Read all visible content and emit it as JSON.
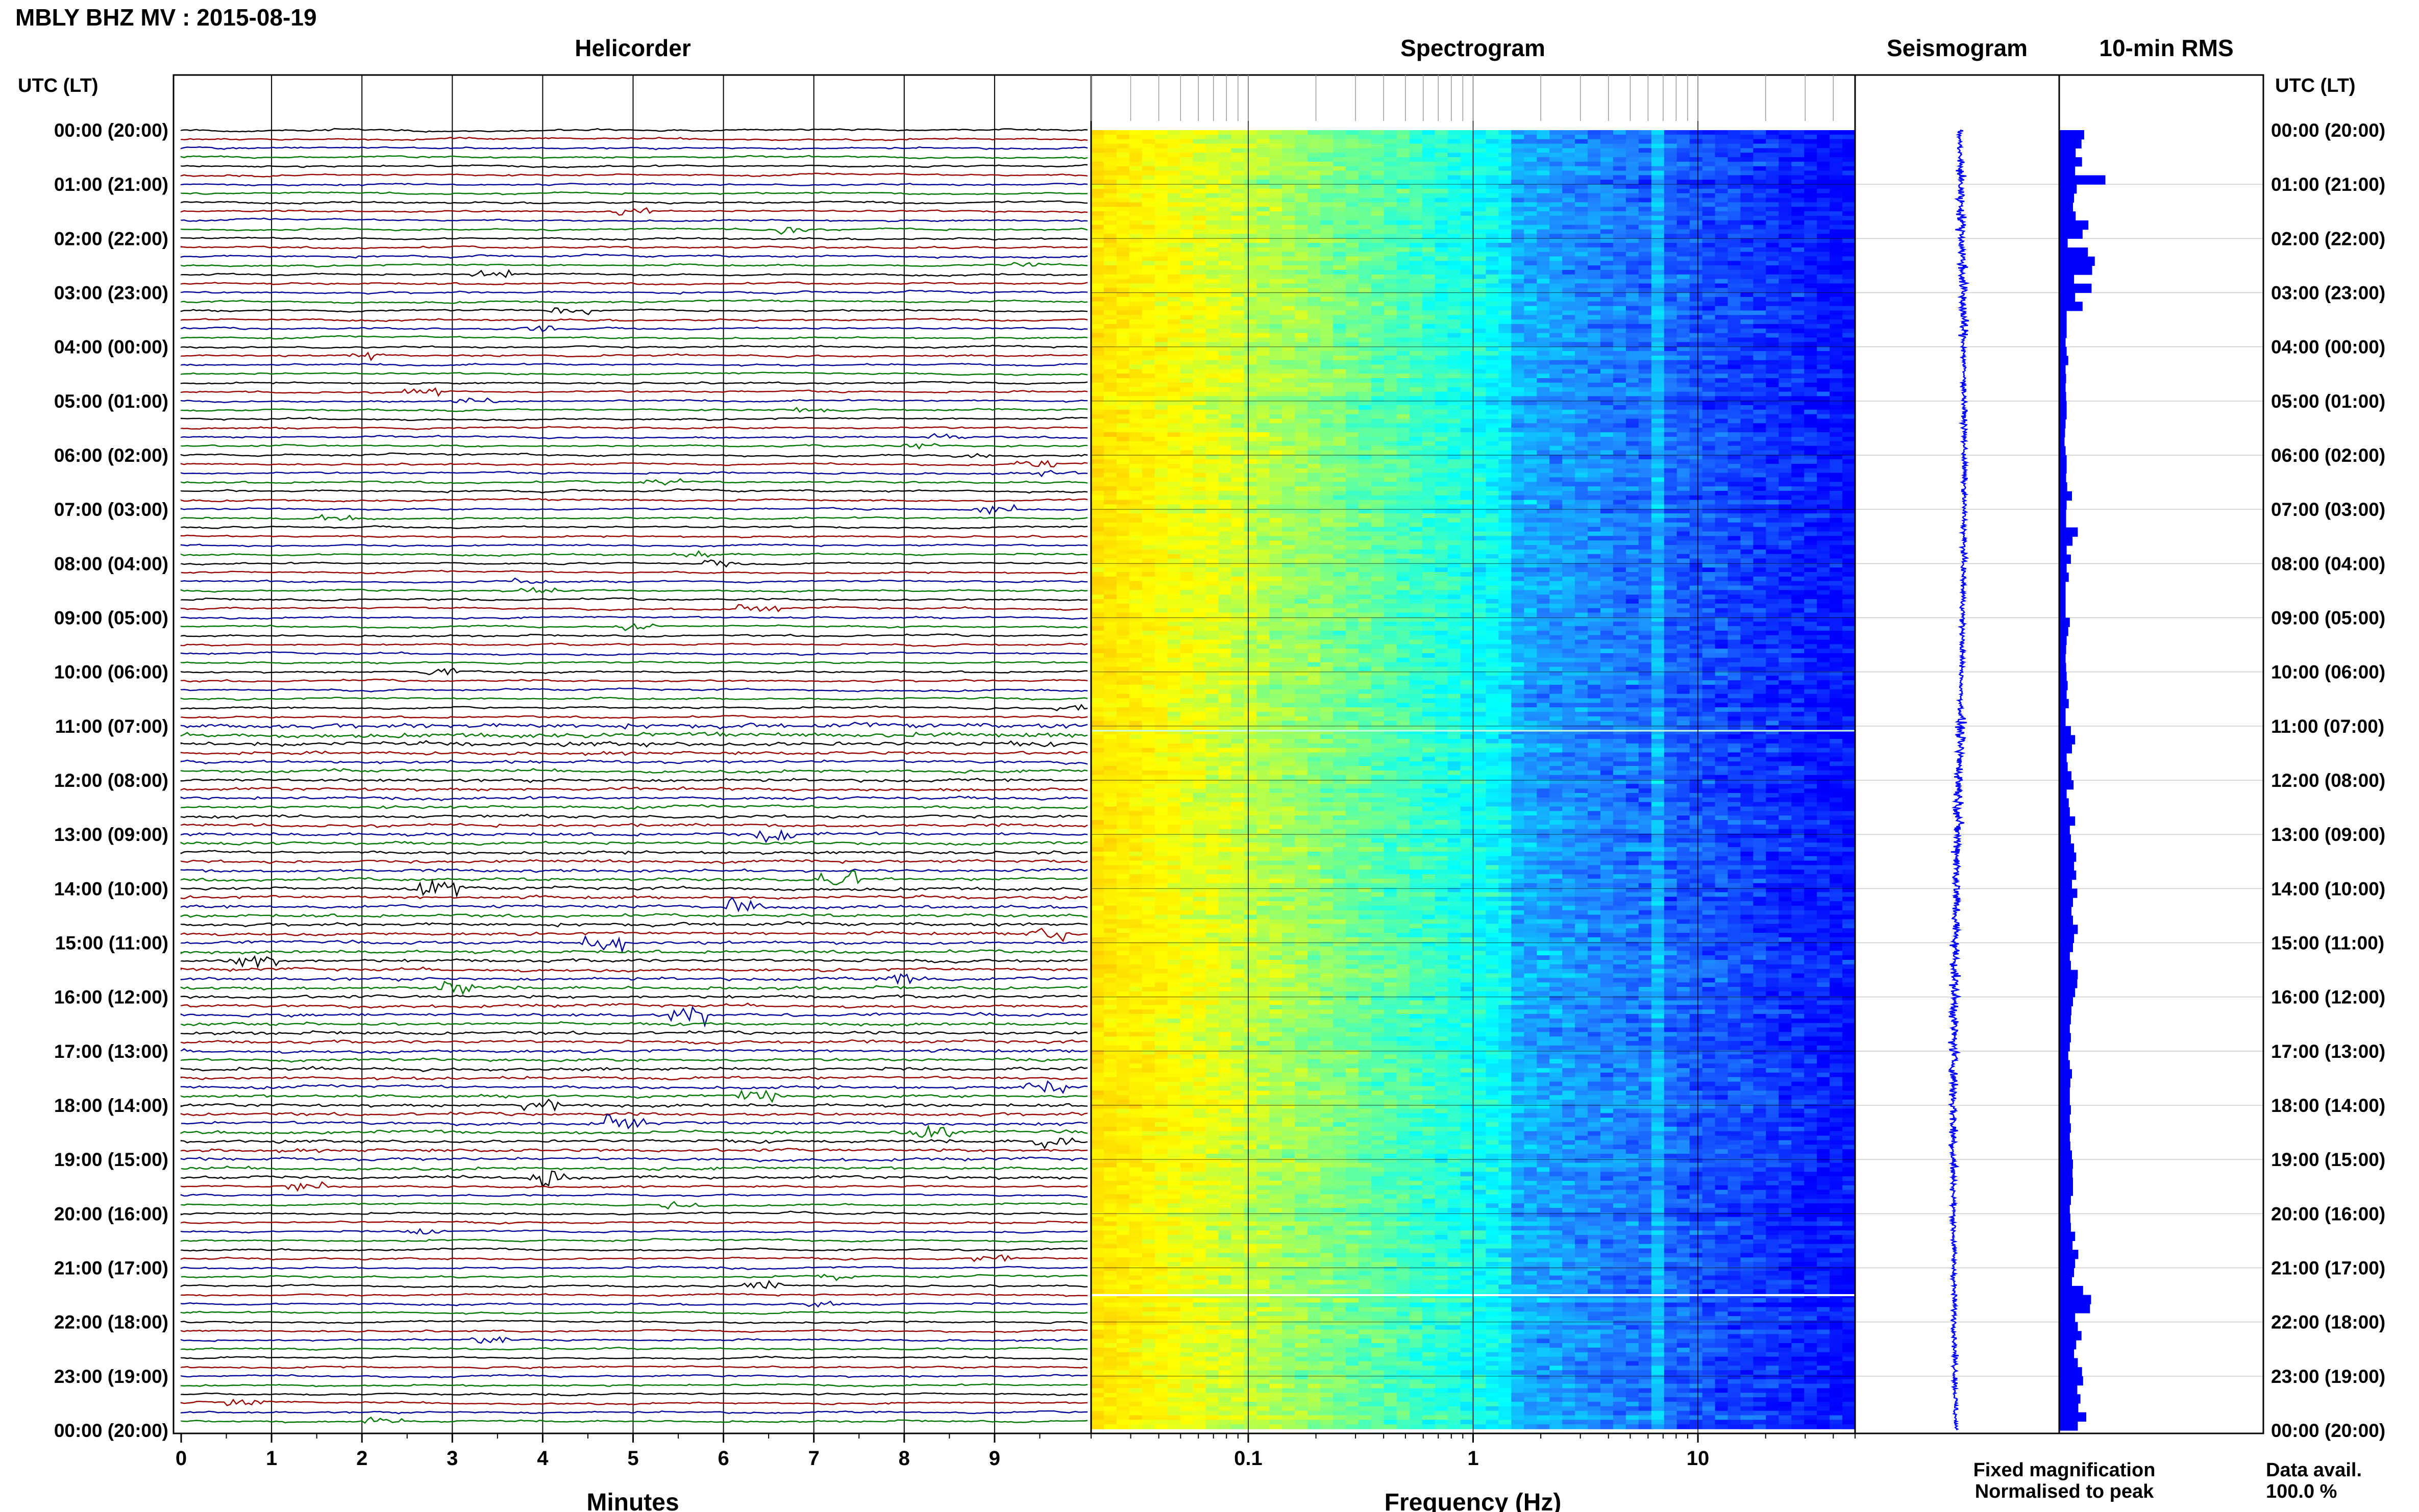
{
  "title": "MBLY BHZ MV : 2015-08-19",
  "panels": {
    "helicorder": "Helicorder",
    "spectrogram": "Spectrogram",
    "seismogram": "Seismogram",
    "rms": "10-min RMS"
  },
  "time_axis_label": "UTC (LT)",
  "time_labels": [
    "00:00 (20:00)",
    "01:00 (21:00)",
    "02:00 (22:00)",
    "03:00 (23:00)",
    "04:00 (00:00)",
    "05:00 (01:00)",
    "06:00 (02:00)",
    "07:00 (03:00)",
    "08:00 (04:00)",
    "09:00 (05:00)",
    "10:00 (06:00)",
    "11:00 (07:00)",
    "12:00 (08:00)",
    "13:00 (09:00)",
    "14:00 (10:00)",
    "15:00 (11:00)",
    "16:00 (12:00)",
    "17:00 (13:00)",
    "18:00 (14:00)",
    "19:00 (15:00)",
    "20:00 (16:00)",
    "21:00 (17:00)",
    "22:00 (18:00)",
    "23:00 (19:00)",
    "00:00 (20:00)"
  ],
  "helicorder_xlabel": "Minutes",
  "helicorder_ticks": [
    "0",
    "1",
    "2",
    "3",
    "4",
    "5",
    "6",
    "7",
    "8",
    "9"
  ],
  "spectrogram_xlabel": "Frequency (Hz)",
  "spectrogram_ticks": [
    "0.1",
    "1",
    "10"
  ],
  "legend": {
    "fixed": "Fixed magnification",
    "normalised": "Normalised to peak",
    "fixed_color": "#0000ff",
    "normalised_color": "#ff0000"
  },
  "data_avail": {
    "label": "Data avail.",
    "value": "100.0 %"
  },
  "trace_colors": [
    "#000000",
    "#990000",
    "#000099",
    "#007700"
  ],
  "chart_data": [
    {
      "type": "line",
      "title": "Helicorder",
      "xlabel": "Minutes",
      "xlim": [
        0,
        10
      ],
      "ylabel": "UTC (LT)",
      "rows": 144,
      "row_minutes": 10
    },
    {
      "type": "heatmap",
      "title": "Spectrogram",
      "xlabel": "Frequency (Hz)",
      "xscale": "log",
      "xlim": [
        0.02,
        50
      ],
      "colormap": [
        "#ffc800",
        "#ffff00",
        "#80ff80",
        "#00ffff",
        "#2080ff",
        "#0000ff"
      ]
    },
    {
      "type": "line",
      "title": "Seismogram"
    },
    {
      "type": "bar",
      "title": "10-min RMS",
      "orientation": "horizontal",
      "values": [
        0.47,
        0.42,
        0.31,
        0.43,
        0.3,
        0.87,
        0.33,
        0.28,
        0.26,
        0.31,
        0.55,
        0.44,
        0.16,
        0.54,
        0.67,
        0.62,
        0.28,
        0.61,
        0.3,
        0.44,
        0.14,
        0.14,
        0.14,
        0.12,
        0.14,
        0.17,
        0.12,
        0.13,
        0.12,
        0.13,
        0.14,
        0.14,
        0.12,
        0.11,
        0.1,
        0.12,
        0.14,
        0.14,
        0.13,
        0.15,
        0.24,
        0.14,
        0.13,
        0.13,
        0.35,
        0.25,
        0.14,
        0.22,
        0.14,
        0.18,
        0.12,
        0.12,
        0.12,
        0.12,
        0.2,
        0.17,
        0.14,
        0.13,
        0.12,
        0.13,
        0.14,
        0.16,
        0.14,
        0.18,
        0.12,
        0.12,
        0.22,
        0.3,
        0.24,
        0.14,
        0.16,
        0.23,
        0.27,
        0.14,
        0.18,
        0.2,
        0.3,
        0.2,
        0.22,
        0.28,
        0.32,
        0.28,
        0.32,
        0.24,
        0.34,
        0.26,
        0.23,
        0.26,
        0.35,
        0.28,
        0.26,
        0.2,
        0.22,
        0.35,
        0.34,
        0.3,
        0.26,
        0.23,
        0.22,
        0.2,
        0.22,
        0.2,
        0.17,
        0.2,
        0.24,
        0.21,
        0.2,
        0.2,
        0.22,
        0.2,
        0.22,
        0.2,
        0.21,
        0.24,
        0.26,
        0.25,
        0.26,
        0.26,
        0.22,
        0.2,
        0.21,
        0.22,
        0.3,
        0.25,
        0.36,
        0.3,
        0.28,
        0.24,
        0.45,
        0.6,
        0.58,
        0.3,
        0.35,
        0.42,
        0.32,
        0.28,
        0.35,
        0.43,
        0.45,
        0.34,
        0.4,
        0.36,
        0.51,
        0.35
      ]
    }
  ]
}
